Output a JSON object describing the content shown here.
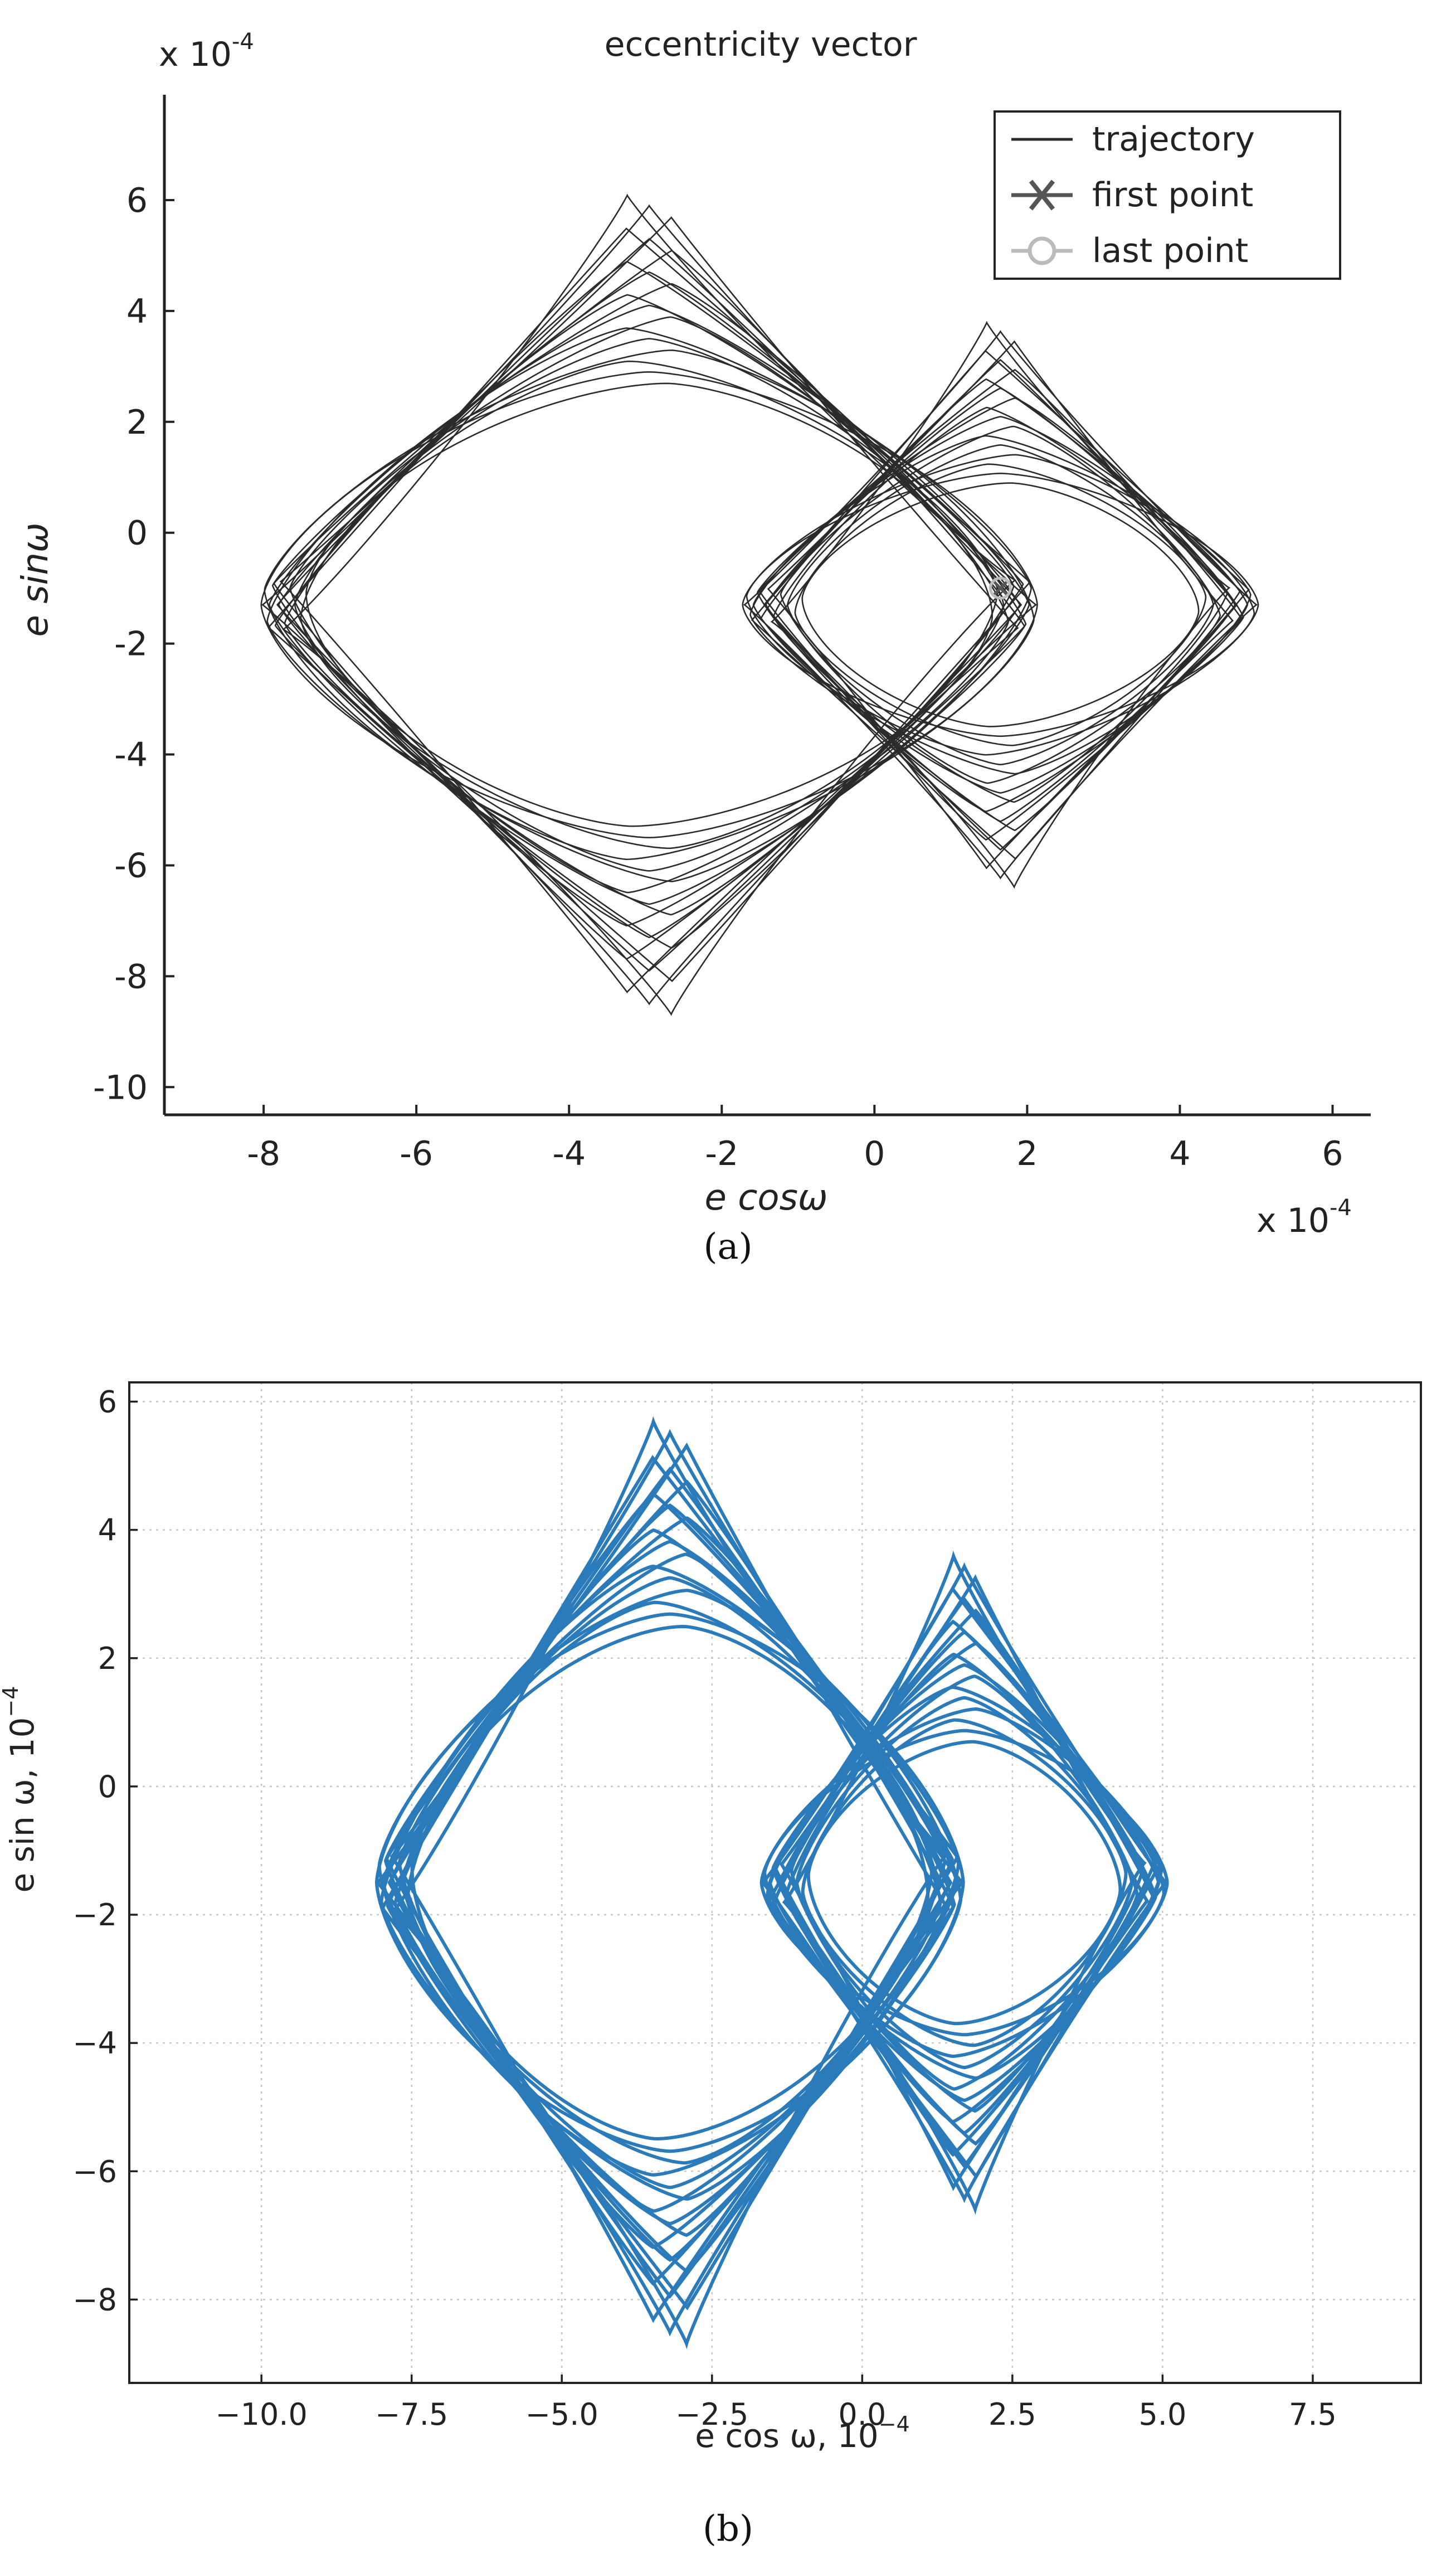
{
  "chart_data": [
    {
      "type": "line",
      "panel_label": "(a)",
      "title": "eccentricity vector",
      "xlabel": "e cosω",
      "ylabel": "e sinω",
      "x_multiplier": "x 10",
      "x_multiplier_exp": "-4",
      "y_multiplier": "x 10",
      "y_multiplier_exp": "-4",
      "xlim": [
        -9.3,
        6.5
      ],
      "ylim": [
        -10.5,
        7.9
      ],
      "xticks": [
        -8,
        -6,
        -4,
        -2,
        0,
        2,
        4,
        6
      ],
      "yticks": [
        -10,
        -8,
        -6,
        -4,
        -2,
        0,
        2,
        4,
        6
      ],
      "grid": false,
      "legend_position": "top-right",
      "legend": [
        {
          "label": "trajectory",
          "marker": "line"
        },
        {
          "label": "first point",
          "marker": "x"
        },
        {
          "label": "last point",
          "marker": "o"
        }
      ],
      "colors": {
        "trajectory": "#2b2b2b",
        "first_point": "#555555",
        "last_point": "#bbbbbb"
      },
      "series": [
        {
          "name": "trajectory",
          "kind": "lobe",
          "center": [
            -2.95,
            -1.3
          ],
          "rx": [
            4.5,
            5.1
          ],
          "ry": [
            4.0,
            7.4
          ],
          "turns": 18,
          "notes": "left lobe"
        },
        {
          "name": "trajectory",
          "kind": "lobe",
          "center": [
            1.65,
            -1.3
          ],
          "rx": [
            2.6,
            3.4
          ],
          "ry": [
            2.2,
            5.1
          ],
          "turns": 18,
          "notes": "right lobe"
        },
        {
          "name": "first point",
          "x": [
            1.65
          ],
          "y": [
            -1.0
          ]
        },
        {
          "name": "last point",
          "x": [
            1.65
          ],
          "y": [
            -1.0
          ]
        }
      ]
    },
    {
      "type": "line",
      "panel_label": "(b)",
      "title": "",
      "xlabel": "e cos ω, 10",
      "xlabel_exp": "−4",
      "ylabel": "e sin ω, 10",
      "ylabel_exp": "−4",
      "xlim": [
        -12.2,
        9.3
      ],
      "ylim": [
        -9.3,
        6.3
      ],
      "xticks": [
        "−10.0",
        "−7.5",
        "−5.0",
        "−2.5",
        "0.0",
        "2.5",
        "5.0",
        "7.5"
      ],
      "xtick_values": [
        -10,
        -7.5,
        -5,
        -2.5,
        0,
        2.5,
        5,
        7.5
      ],
      "yticks": [
        "−8",
        "−6",
        "−4",
        "−2",
        "0",
        "2",
        "4",
        "6"
      ],
      "ytick_values": [
        -8,
        -6,
        -4,
        -2,
        0,
        2,
        4,
        6
      ],
      "grid": true,
      "colors": {
        "trajectory": "#2b7bba"
      },
      "series": [
        {
          "kind": "lobe",
          "center": [
            -3.2,
            -1.5
          ],
          "rx": [
            4.3,
            4.9
          ],
          "ry": [
            4.0,
            7.2
          ],
          "turns": 18,
          "notes": "left lobe"
        },
        {
          "kind": "lobe",
          "center": [
            1.7,
            -1.5
          ],
          "rx": [
            2.6,
            3.4
          ],
          "ry": [
            2.2,
            5.1
          ],
          "turns": 18,
          "notes": "right lobe"
        }
      ]
    }
  ]
}
